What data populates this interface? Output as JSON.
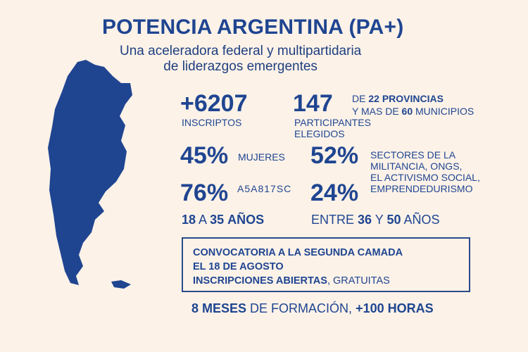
{
  "title": "POTENCIA ARGENTINA (PA+)",
  "subtitle": [
    "Una aceleradora federal y multipartidaria",
    "de liderazgos emergentes"
  ],
  "stats": {
    "inscriptos": {
      "value": "+6207",
      "label": "INSCRIPTOS"
    },
    "participantes": {
      "value": "147",
      "label1": "PARTICIPANTES",
      "label2": "ELEGIDOS",
      "de": "DE",
      "provincias_n": "22",
      "provincias": "PROVINCIAS",
      "y_mas_de": "Y MAS DE",
      "municipios_n": "60",
      "municipios": "MUNICIPIOS"
    },
    "mujeres": {
      "value": "45%",
      "label": "MUJERES"
    },
    "sectores": {
      "value": "52%",
      "label": [
        "SECTORES DE LA",
        "MILITANCIA, ONGS,",
        "EL ACTIVISMO SOCIAL,",
        "EMPRENDEDURISMO"
      ]
    },
    "age1": {
      "value": "76%",
      "code": "A5A817SC",
      "a": "18",
      "mid": "A",
      "b": "35",
      "unit": "AÑOS"
    },
    "age2": {
      "value": "24%",
      "pre": "ENTRE",
      "a": "36",
      "mid": "Y",
      "b": "50",
      "unit": "AÑOS"
    }
  },
  "box": [
    "CONVOCATORIA A LA SEGUNDA CAMADA",
    "EL 18 DE AGOSTO",
    "INSCRIPCIONES ABIERTAS",
    ", GRATUITAS"
  ],
  "footer": {
    "meses": "8 MESES",
    "formacion": "DE FORMACIÓN,",
    "horas": "+100 HORAS"
  },
  "colors": {
    "bg": "#fcf2e8",
    "blue": "#1f4591"
  }
}
